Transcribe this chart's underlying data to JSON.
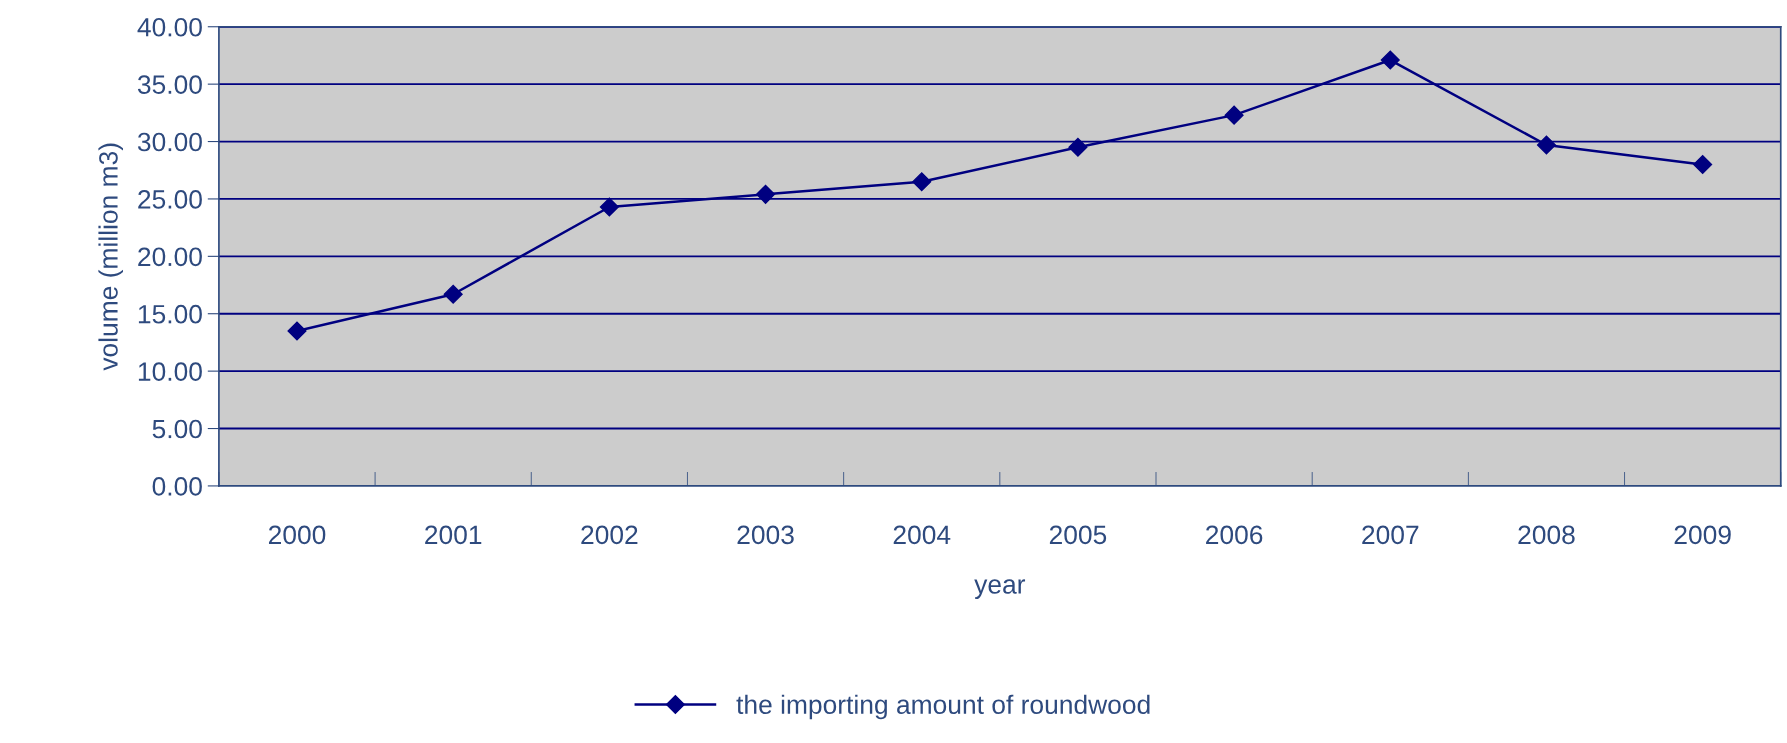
{
  "chart_data": {
    "type": "line",
    "xlabel": "year",
    "ylabel": "volume (million m3)",
    "categories": [
      "2000",
      "2001",
      "2002",
      "2003",
      "2004",
      "2005",
      "2006",
      "2007",
      "2008",
      "2009"
    ],
    "series": [
      {
        "name": "the importing amount of roundwood",
        "color": "#000080",
        "values": [
          13.5,
          16.7,
          24.3,
          25.4,
          26.5,
          29.5,
          32.3,
          37.1,
          29.7,
          28.0
        ]
      }
    ],
    "ylim": [
      0,
      40
    ],
    "yticks": [
      {
        "value": 0,
        "label": "0.00"
      },
      {
        "value": 5,
        "label": "5.00"
      },
      {
        "value": 10,
        "label": "10.00"
      },
      {
        "value": 15,
        "label": "15.00"
      },
      {
        "value": 20,
        "label": "20.00"
      },
      {
        "value": 25,
        "label": "25.00"
      },
      {
        "value": 30,
        "label": "30.00"
      },
      {
        "value": 35,
        "label": "35.00"
      },
      {
        "value": 40,
        "label": "40.00"
      }
    ],
    "grid": "y",
    "legend": "bottom",
    "marker": "diamond",
    "line_style": "solid"
  }
}
